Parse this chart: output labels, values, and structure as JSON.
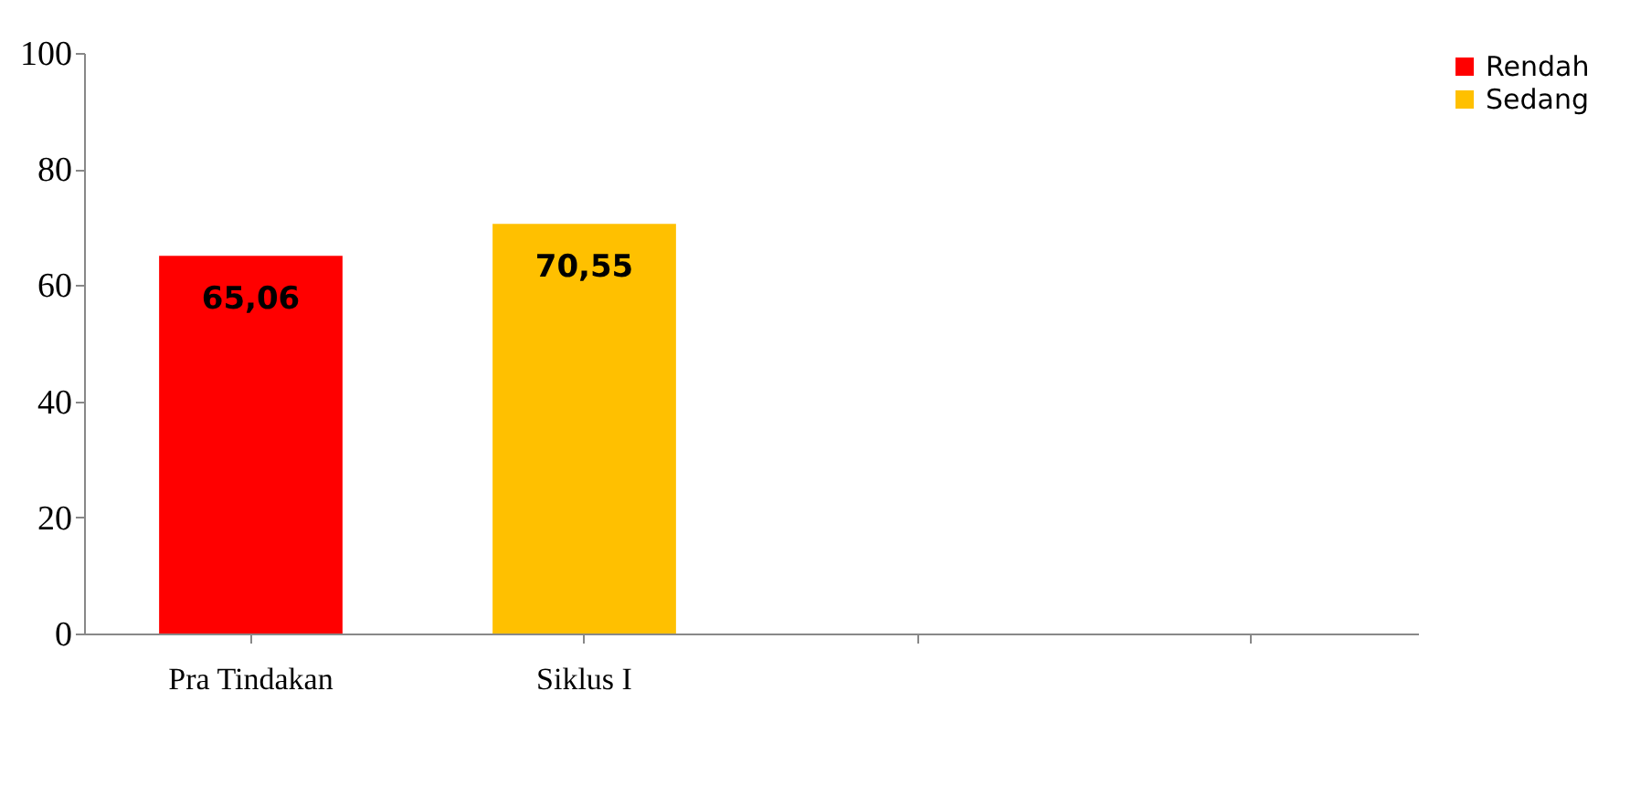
{
  "chart_data": {
    "type": "bar",
    "categories": [
      "Pra Tindakan",
      "Siklus I",
      null,
      null
    ],
    "series": [
      {
        "name": "Rendah",
        "color": "#ff0000",
        "values": [
          65.06,
          null,
          null,
          null
        ],
        "value_labels": [
          "65,06",
          null,
          null,
          null
        ]
      },
      {
        "name": "Sedang",
        "color": "#ffc000",
        "values": [
          null,
          70.55,
          null,
          null
        ],
        "value_labels": [
          null,
          "70,55",
          null,
          null
        ]
      }
    ],
    "ylim": [
      0,
      100
    ],
    "yticks": [
      0,
      20,
      40,
      60,
      80,
      100
    ],
    "grid": false,
    "legend": "right"
  }
}
